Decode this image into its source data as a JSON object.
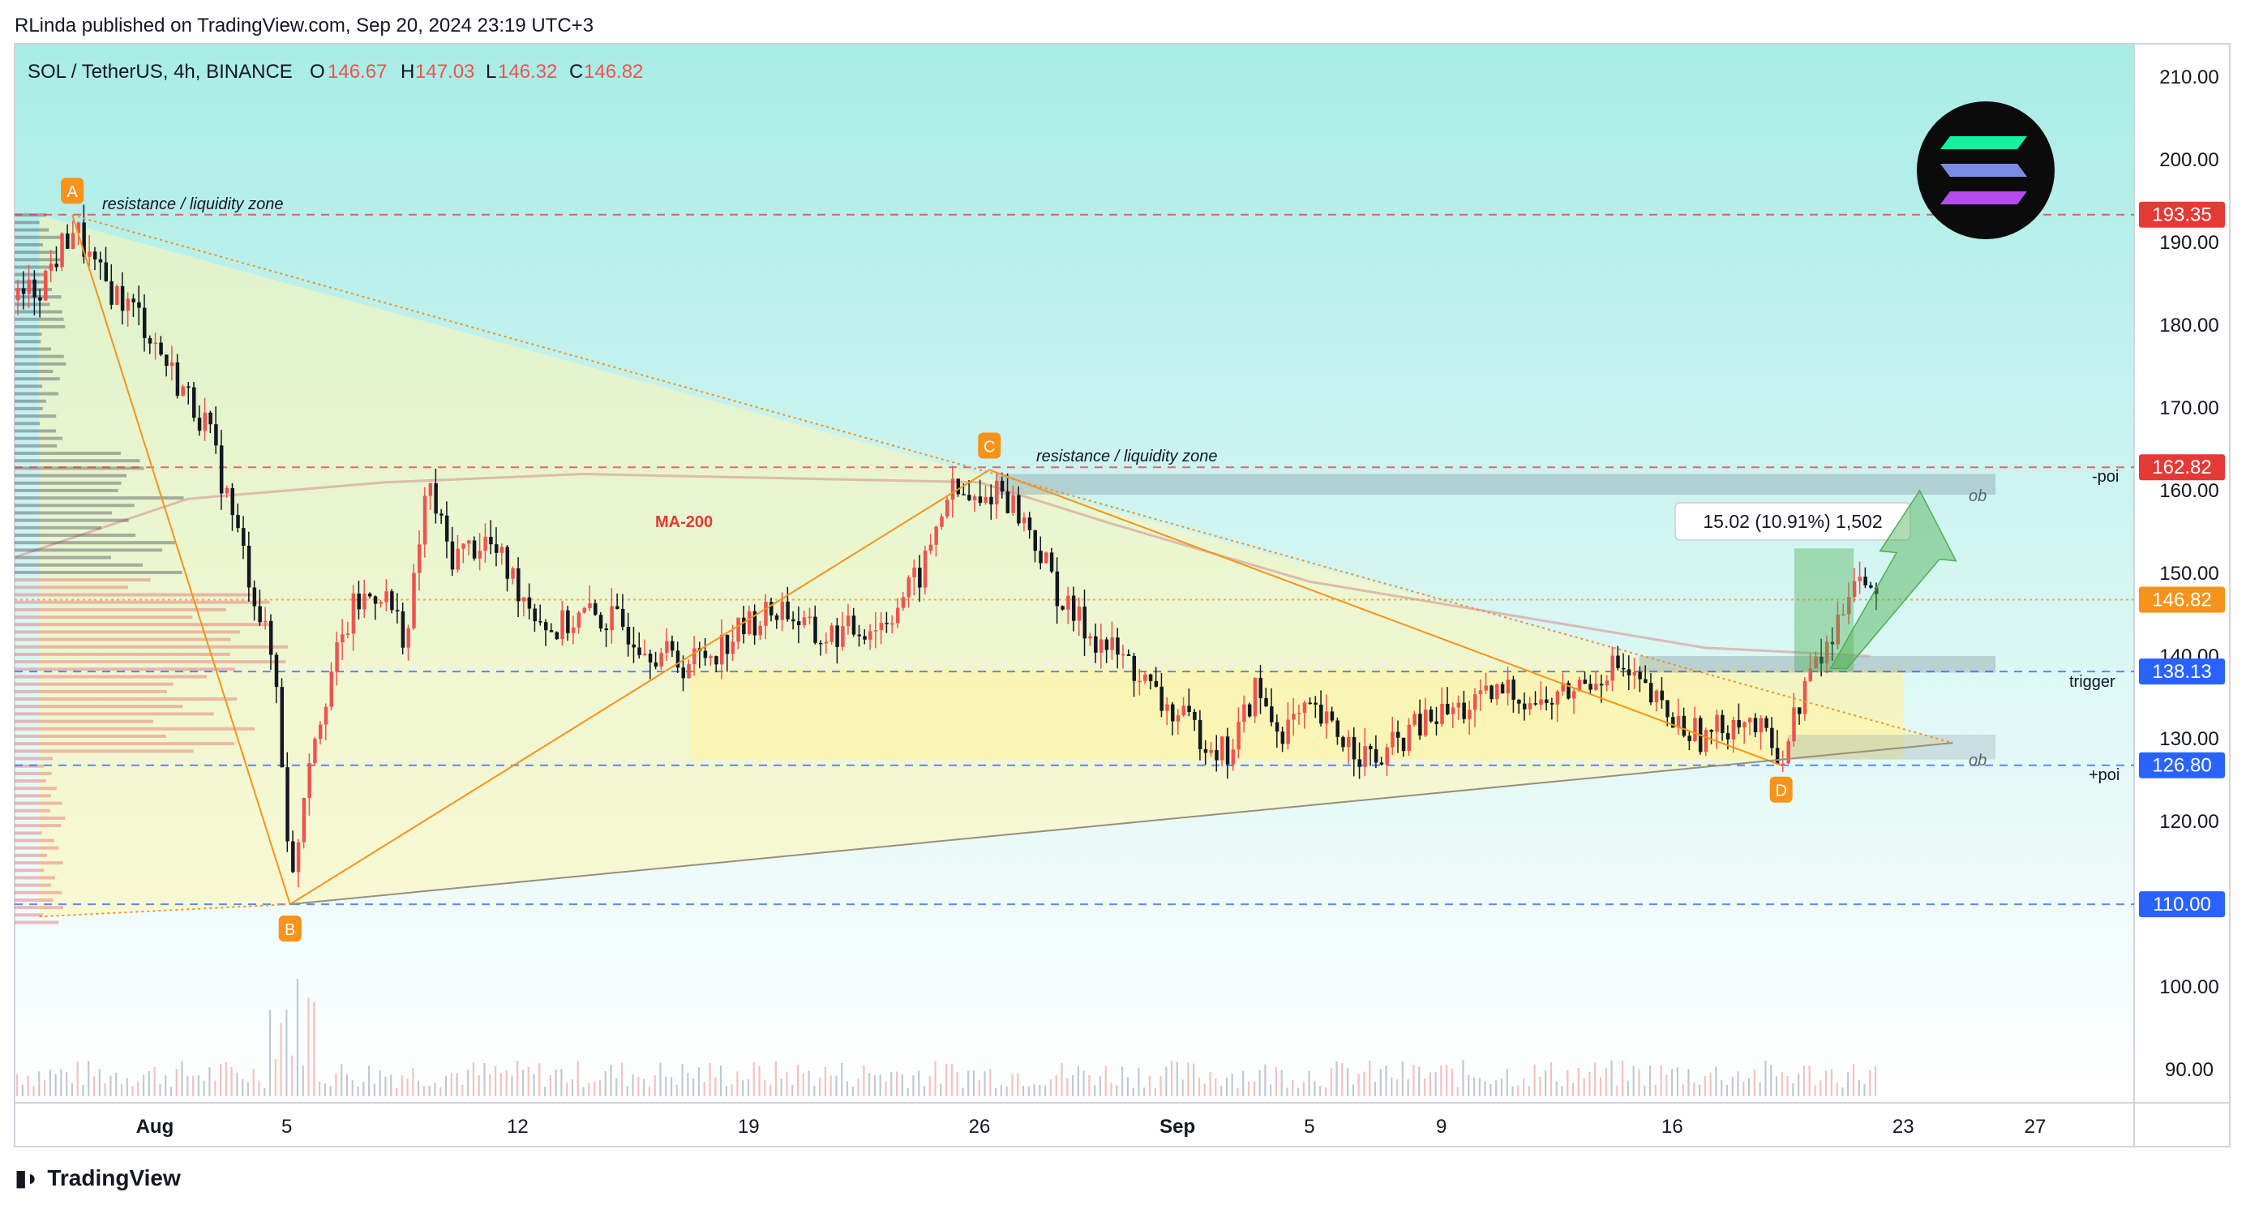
{
  "header": {
    "publisher_line": "RLinda published on TradingView.com, Sep 20, 2024 23:19 UTC+3"
  },
  "symbol": {
    "name": "SOL / TetherUS, 4h, BINANCE",
    "open_label": "O",
    "open": "146.67",
    "high_label": "H",
    "high": "147.03",
    "low_label": "L",
    "low": "146.32",
    "close_label": "C",
    "close": "146.82"
  },
  "colors": {
    "up": "#ef5350",
    "down": "#131722",
    "bg_top": "#a8ece6",
    "bg_bottom": "#ffffff",
    "triangle": "#fff6b3",
    "orange": "#f7931a",
    "red_level": "#e53935",
    "blue_level": "#2962ff",
    "green": "#4caf50",
    "axis_text": "#131722"
  },
  "footer": {
    "brand": "TradingView",
    "logo_icon": "tradingview-logo-icon"
  },
  "annotations": {
    "pattern_points": [
      "A",
      "B",
      "C",
      "D"
    ],
    "zone_label_1": "resistance / liquidity zone",
    "zone_label_2": "resistance / liquidity zone",
    "ma_label": "MA-200",
    "ob_label_1": "ob",
    "ob_label_2": "ob",
    "level_label_poi_top": "-poi",
    "level_label_trigger": "trigger",
    "level_label_poi_bottom": "+poi",
    "measure_box": "15.02 (10.91%) 1,502",
    "coin_logo_icon": "solana-logo-icon"
  },
  "chart_data": {
    "type": "candlestick",
    "title": "SOL / TetherUS, 4h, BINANCE",
    "xlabel": "",
    "ylabel": "",
    "ylim": [
      86,
      214
    ],
    "y_ticks": [
      "210.00",
      "200.00",
      "190.00",
      "180.00",
      "170.00",
      "160.00",
      "150.00",
      "140.00",
      "130.00",
      "120.00",
      "110.00",
      "100.00",
      "90.00"
    ],
    "y_tick_values": [
      210,
      200,
      190,
      180,
      170,
      160,
      150,
      140,
      130,
      120,
      110,
      100,
      90
    ],
    "x_ticks": [
      "Aug",
      "5",
      "12",
      "19",
      "26",
      "Sep",
      "5",
      "9",
      "16",
      "23",
      "27"
    ],
    "x_tick_days": [
      1,
      5,
      12,
      19,
      26,
      32,
      36,
      40,
      47,
      54,
      58
    ],
    "x_range_days": [
      -3.25,
      61
    ],
    "bold_x_ticks": [
      "Aug",
      "Sep"
    ],
    "price_levels": [
      {
        "value": 193.35,
        "label": "193.35",
        "style": "red",
        "line": "dashed"
      },
      {
        "value": 162.82,
        "label": "162.82",
        "style": "red",
        "line": "dashed"
      },
      {
        "value": 146.82,
        "label": "146.82",
        "style": "orange",
        "line": "dotted"
      },
      {
        "value": 138.13,
        "label": "138.13",
        "style": "blue",
        "line": "dashed"
      },
      {
        "value": 126.8,
        "label": "126.80",
        "style": "blue",
        "line": "dashed"
      },
      {
        "value": 110.0,
        "label": "110.00",
        "style": "blue",
        "line": "dashed"
      }
    ],
    "pivots": [
      {
        "label": "A",
        "day": -1.5,
        "price": 193.3
      },
      {
        "label": "B",
        "day": 5.1,
        "price": 110.0
      },
      {
        "label": "C",
        "day": 26.3,
        "price": 162.5
      },
      {
        "label": "D",
        "day": 50.3,
        "price": 126.8
      }
    ],
    "close_series": [
      {
        "day": -3.2,
        "price": 183
      },
      {
        "day": -2.5,
        "price": 185
      },
      {
        "day": -1.5,
        "price": 192
      },
      {
        "day": -0.8,
        "price": 186
      },
      {
        "day": 0.5,
        "price": 181
      },
      {
        "day": 1.5,
        "price": 174
      },
      {
        "day": 2.5,
        "price": 168
      },
      {
        "day": 3.3,
        "price": 157
      },
      {
        "day": 4.0,
        "price": 147
      },
      {
        "day": 4.6,
        "price": 138
      },
      {
        "day": 5.1,
        "price": 112
      },
      {
        "day": 5.6,
        "price": 128
      },
      {
        "day": 6.3,
        "price": 138
      },
      {
        "day": 7.0,
        "price": 146
      },
      {
        "day": 7.8,
        "price": 148
      },
      {
        "day": 8.6,
        "price": 142
      },
      {
        "day": 9.2,
        "price": 161
      },
      {
        "day": 9.9,
        "price": 152
      },
      {
        "day": 11.0,
        "price": 154
      },
      {
        "day": 12.2,
        "price": 147
      },
      {
        "day": 13.0,
        "price": 143
      },
      {
        "day": 14.0,
        "price": 145
      },
      {
        "day": 15.0,
        "price": 144
      },
      {
        "day": 16.0,
        "price": 141
      },
      {
        "day": 17.0,
        "price": 139
      },
      {
        "day": 18.0,
        "price": 141
      },
      {
        "day": 19.0,
        "price": 144
      },
      {
        "day": 20.0,
        "price": 146
      },
      {
        "day": 21.0,
        "price": 142
      },
      {
        "day": 22.0,
        "price": 143
      },
      {
        "day": 23.0,
        "price": 144
      },
      {
        "day": 24.2,
        "price": 150
      },
      {
        "day": 25.0,
        "price": 160
      },
      {
        "day": 26.0,
        "price": 158
      },
      {
        "day": 26.5,
        "price": 161
      },
      {
        "day": 27.5,
        "price": 155
      },
      {
        "day": 28.5,
        "price": 146
      },
      {
        "day": 29.5,
        "price": 142
      },
      {
        "day": 30.5,
        "price": 139
      },
      {
        "day": 31.5,
        "price": 134
      },
      {
        "day": 32.5,
        "price": 131
      },
      {
        "day": 33.5,
        "price": 128
      },
      {
        "day": 34.3,
        "price": 136
      },
      {
        "day": 35.0,
        "price": 131
      },
      {
        "day": 36.0,
        "price": 133
      },
      {
        "day": 37.0,
        "price": 130
      },
      {
        "day": 38.0,
        "price": 127
      },
      {
        "day": 39.0,
        "price": 131
      },
      {
        "day": 40.0,
        "price": 133
      },
      {
        "day": 41.0,
        "price": 134
      },
      {
        "day": 42.0,
        "price": 136
      },
      {
        "day": 43.0,
        "price": 134
      },
      {
        "day": 44.0,
        "price": 136
      },
      {
        "day": 45.2,
        "price": 139
      },
      {
        "day": 46.0,
        "price": 136
      },
      {
        "day": 47.0,
        "price": 132
      },
      {
        "day": 48.0,
        "price": 130
      },
      {
        "day": 49.0,
        "price": 133
      },
      {
        "day": 50.3,
        "price": 128
      },
      {
        "day": 51.0,
        "price": 137
      },
      {
        "day": 51.8,
        "price": 142
      },
      {
        "day": 52.5,
        "price": 151
      },
      {
        "day": 53.0,
        "price": 147
      }
    ]
  }
}
